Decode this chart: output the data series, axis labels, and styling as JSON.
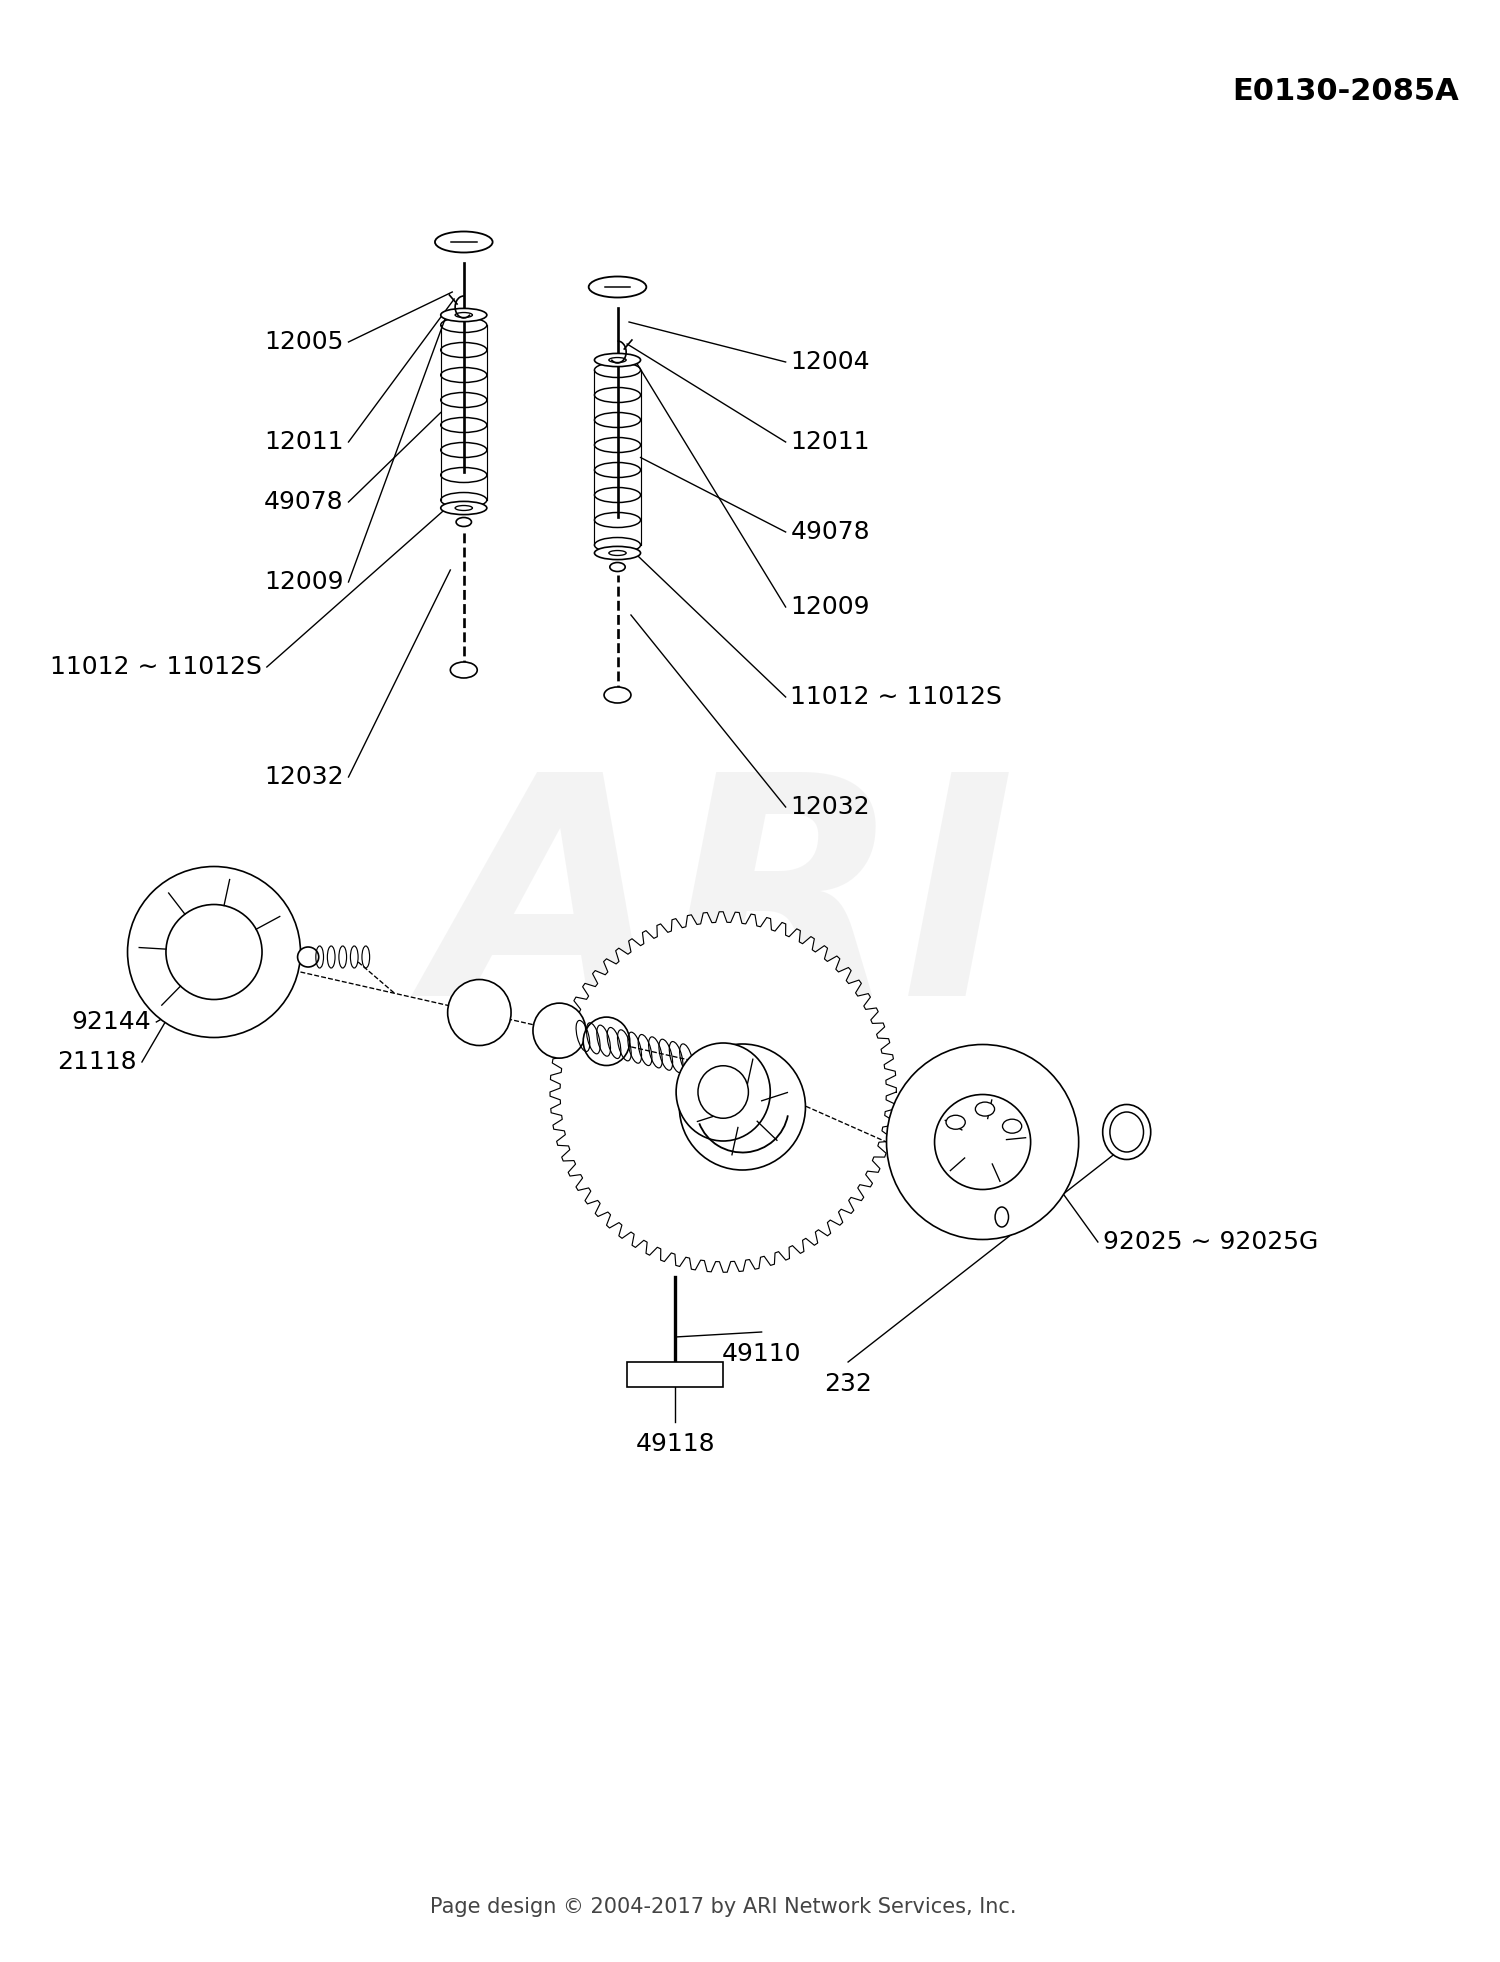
{
  "title_code": "E0130-2085A",
  "footer_text": "Page design © 2004-2017 by ARI Network Services, Inc.",
  "watermark": "ARI",
  "bg_color": "#ffffff",
  "line_color": "#000000",
  "lw": 1.2
}
